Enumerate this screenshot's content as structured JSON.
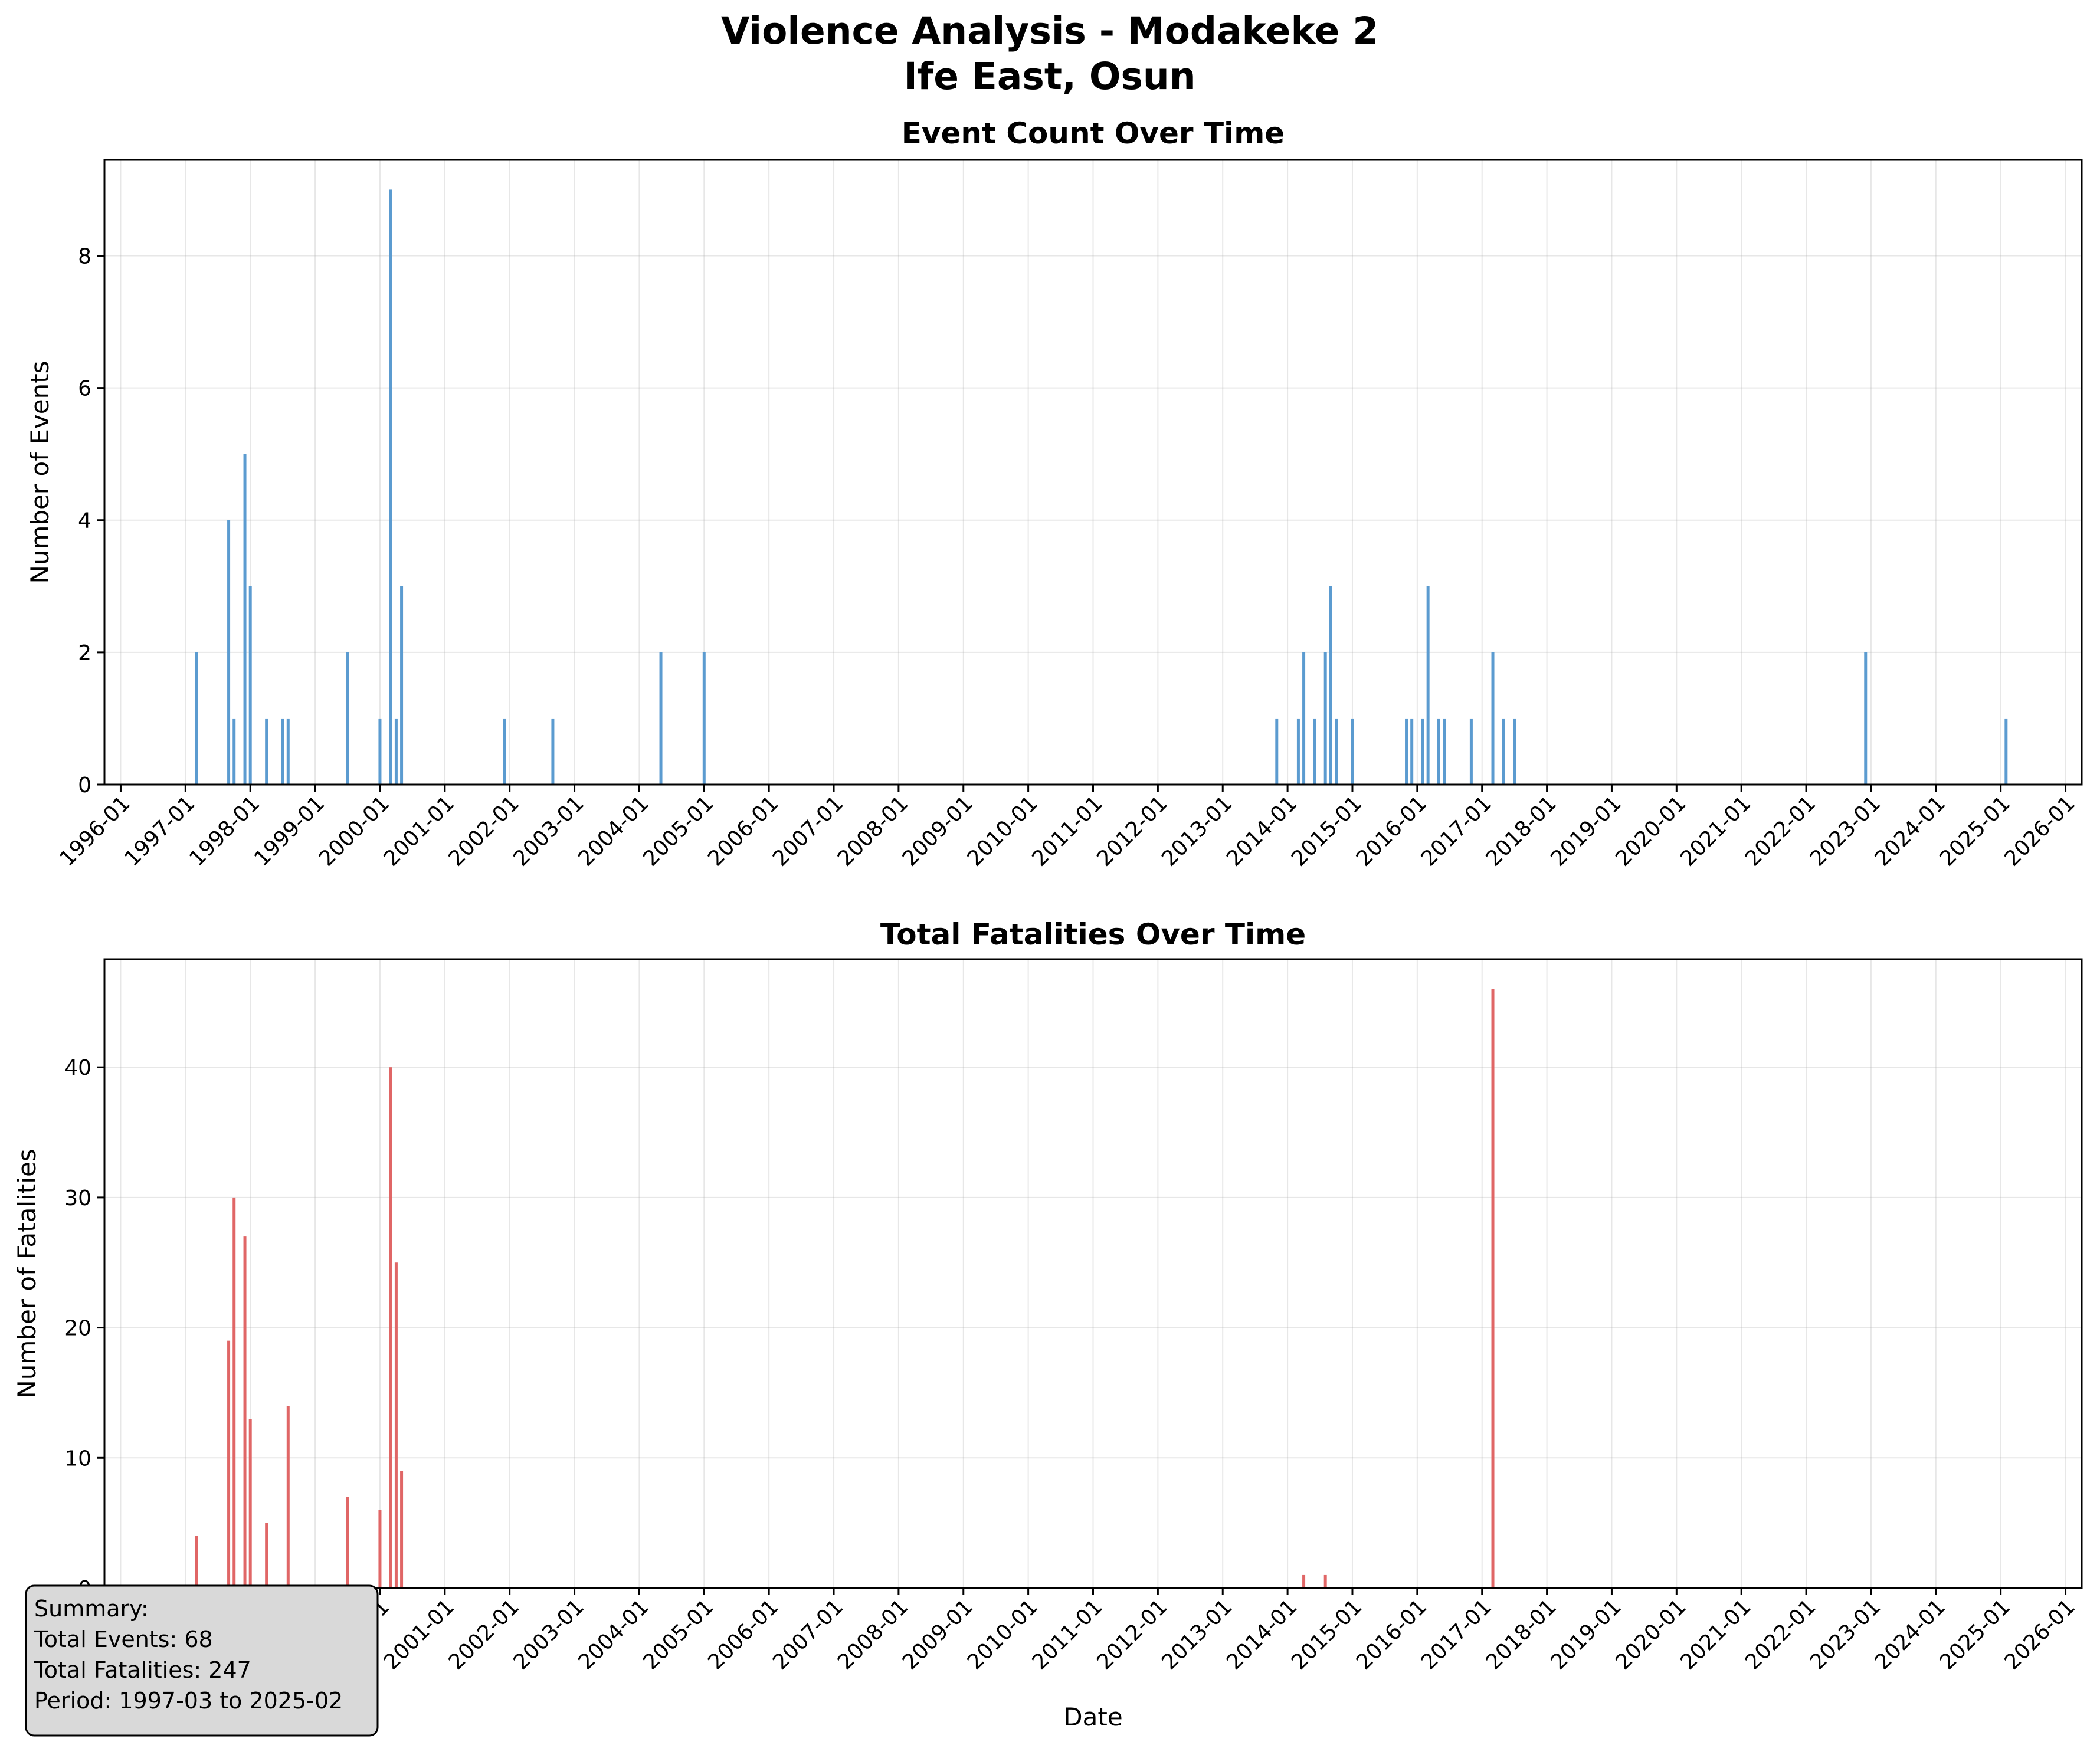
{
  "figure": {
    "title_line1": "Violence Analysis - Modakeke 2",
    "title_line2": "Ife East, Osun"
  },
  "summary": {
    "heading": "Summary:",
    "events": "Total Events: 68",
    "fatalities": "Total Fatalities: 247",
    "period": "Period: 1997-03 to 2025-02"
  },
  "chart_data": [
    {
      "type": "bar",
      "title": "Event Count Over Time",
      "xlabel": "",
      "ylabel": "Number of Events",
      "x_axis": "date",
      "xlim": [
        "1995-10",
        "2026-04"
      ],
      "ylim": [
        0,
        9.45
      ],
      "yticks": [
        0,
        2,
        4,
        6,
        8
      ],
      "xticks": [
        "1996-01",
        "1997-01",
        "1998-01",
        "1999-01",
        "2000-01",
        "2001-01",
        "2002-01",
        "2003-01",
        "2004-01",
        "2005-01",
        "2006-01",
        "2007-01",
        "2008-01",
        "2009-01",
        "2010-01",
        "2011-01",
        "2012-01",
        "2013-01",
        "2014-01",
        "2015-01",
        "2016-01",
        "2017-01",
        "2018-01",
        "2019-01",
        "2020-01",
        "2021-01",
        "2022-01",
        "2023-01",
        "2024-01",
        "2025-01",
        "2026-01"
      ],
      "grid": true,
      "color": "#5b9bd0",
      "series": [
        {
          "x": [
            "1997-03",
            "1997-09",
            "1997-10",
            "1997-12",
            "1998-01",
            "1998-04",
            "1998-07",
            "1998-08",
            "1999-07",
            "2000-01",
            "2000-03",
            "2000-04",
            "2000-05",
            "2001-12",
            "2002-09",
            "2004-05",
            "2005-01",
            "2013-11",
            "2014-03",
            "2014-04",
            "2014-06",
            "2014-08",
            "2014-09",
            "2014-10",
            "2015-01",
            "2015-11",
            "2015-12",
            "2016-02",
            "2016-03",
            "2016-05",
            "2016-06",
            "2016-11",
            "2017-03",
            "2017-05",
            "2017-07",
            "2022-12",
            "2025-02"
          ],
          "values": [
            2,
            4,
            1,
            5,
            3,
            1,
            1,
            1,
            2,
            1,
            9,
            1,
            3,
            1,
            1,
            2,
            2,
            1,
            1,
            2,
            1,
            2,
            3,
            1,
            1,
            1,
            1,
            1,
            3,
            1,
            1,
            1,
            2,
            1,
            1,
            2,
            1
          ]
        }
      ]
    },
    {
      "type": "bar",
      "title": "Total Fatalities Over Time",
      "xlabel": "Date",
      "ylabel": "Number of Fatalities",
      "x_axis": "date",
      "xlim": [
        "1995-10",
        "2026-04"
      ],
      "ylim": [
        0,
        48.3
      ],
      "yticks": [
        0,
        10,
        20,
        30,
        40
      ],
      "xticks": [
        "1996-01",
        "1997-01",
        "1998-01",
        "1999-01",
        "2000-01",
        "2001-01",
        "2002-01",
        "2003-01",
        "2004-01",
        "2005-01",
        "2006-01",
        "2007-01",
        "2008-01",
        "2009-01",
        "2010-01",
        "2011-01",
        "2012-01",
        "2013-01",
        "2014-01",
        "2015-01",
        "2016-01",
        "2017-01",
        "2018-01",
        "2019-01",
        "2020-01",
        "2021-01",
        "2022-01",
        "2023-01",
        "2024-01",
        "2025-01",
        "2026-01"
      ],
      "grid": true,
      "color": "#e06666",
      "series": [
        {
          "x": [
            "1997-03",
            "1997-09",
            "1997-10",
            "1997-12",
            "1998-01",
            "1998-04",
            "1998-08",
            "1999-07",
            "2000-01",
            "2000-03",
            "2000-04",
            "2000-05",
            "2014-04",
            "2014-08",
            "2017-03"
          ],
          "values": [
            4,
            19,
            30,
            27,
            13,
            5,
            14,
            7,
            6,
            40,
            25,
            9,
            1,
            1,
            46
          ]
        }
      ]
    }
  ]
}
